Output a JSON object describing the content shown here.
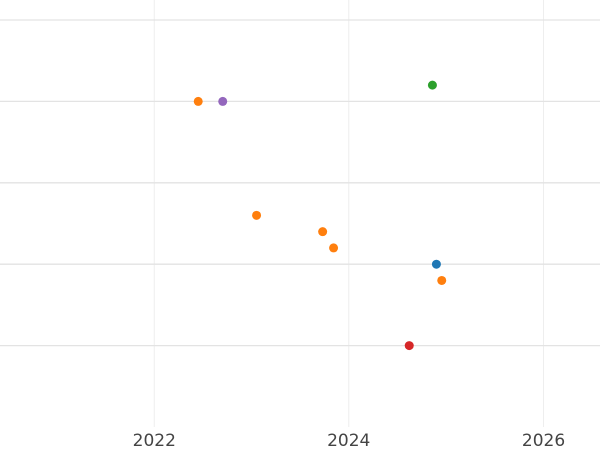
{
  "chart_data": {
    "type": "scatter",
    "title": "",
    "xlabel": "",
    "ylabel": "",
    "x_axis": "date",
    "xlim": [
      "2020-06-01",
      "2026-08-01"
    ],
    "ylim": [
      0,
      25
    ],
    "x_ticks": [
      "2022-01-01",
      "2024-01-01",
      "2026-01-01"
    ],
    "x_tick_labels": [
      "2022",
      "2024",
      "2026"
    ],
    "y_gridlines": [
      5,
      10,
      15,
      20,
      25
    ],
    "y_tick_labels_visible": false,
    "grid": true,
    "legend": "none",
    "points": [
      {
        "x": "2022-06-15",
        "y": 20,
        "color": "#ff7f0e"
      },
      {
        "x": "2022-09-15",
        "y": 20,
        "color": "#9467bd"
      },
      {
        "x": "2023-01-20",
        "y": 13,
        "color": "#ff7f0e"
      },
      {
        "x": "2023-09-25",
        "y": 12,
        "color": "#ff7f0e"
      },
      {
        "x": "2023-11-05",
        "y": 11,
        "color": "#ff7f0e"
      },
      {
        "x": "2024-08-15",
        "y": 5,
        "color": "#d62728"
      },
      {
        "x": "2024-11-10",
        "y": 21,
        "color": "#2ca02c"
      },
      {
        "x": "2024-11-25",
        "y": 10,
        "color": "#1f77b4"
      },
      {
        "x": "2024-12-15",
        "y": 9,
        "color": "#ff7f0e"
      }
    ]
  }
}
